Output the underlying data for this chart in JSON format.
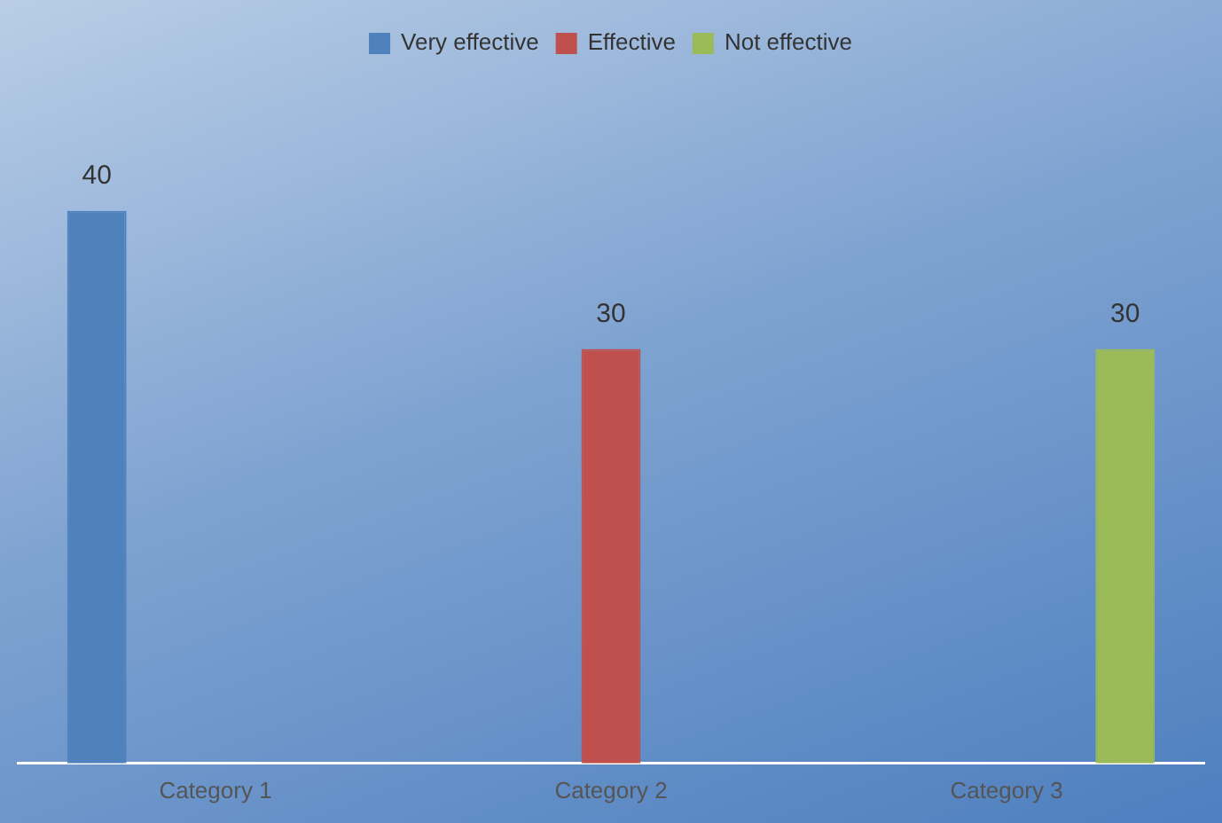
{
  "chart_data": {
    "type": "bar",
    "categories": [
      "Category 1",
      "Category 2",
      "Category 3"
    ],
    "series": [
      {
        "name": "Very effective",
        "color": "#4f81bd",
        "values": [
          40,
          null,
          null
        ]
      },
      {
        "name": "Effective",
        "color": "#c0504d",
        "values": [
          null,
          30,
          null
        ]
      },
      {
        "name": "Not effective",
        "color": "#9bbb59",
        "values": [
          null,
          null,
          30
        ]
      }
    ],
    "data_labels": true,
    "legend": "top",
    "grid": false
  }
}
